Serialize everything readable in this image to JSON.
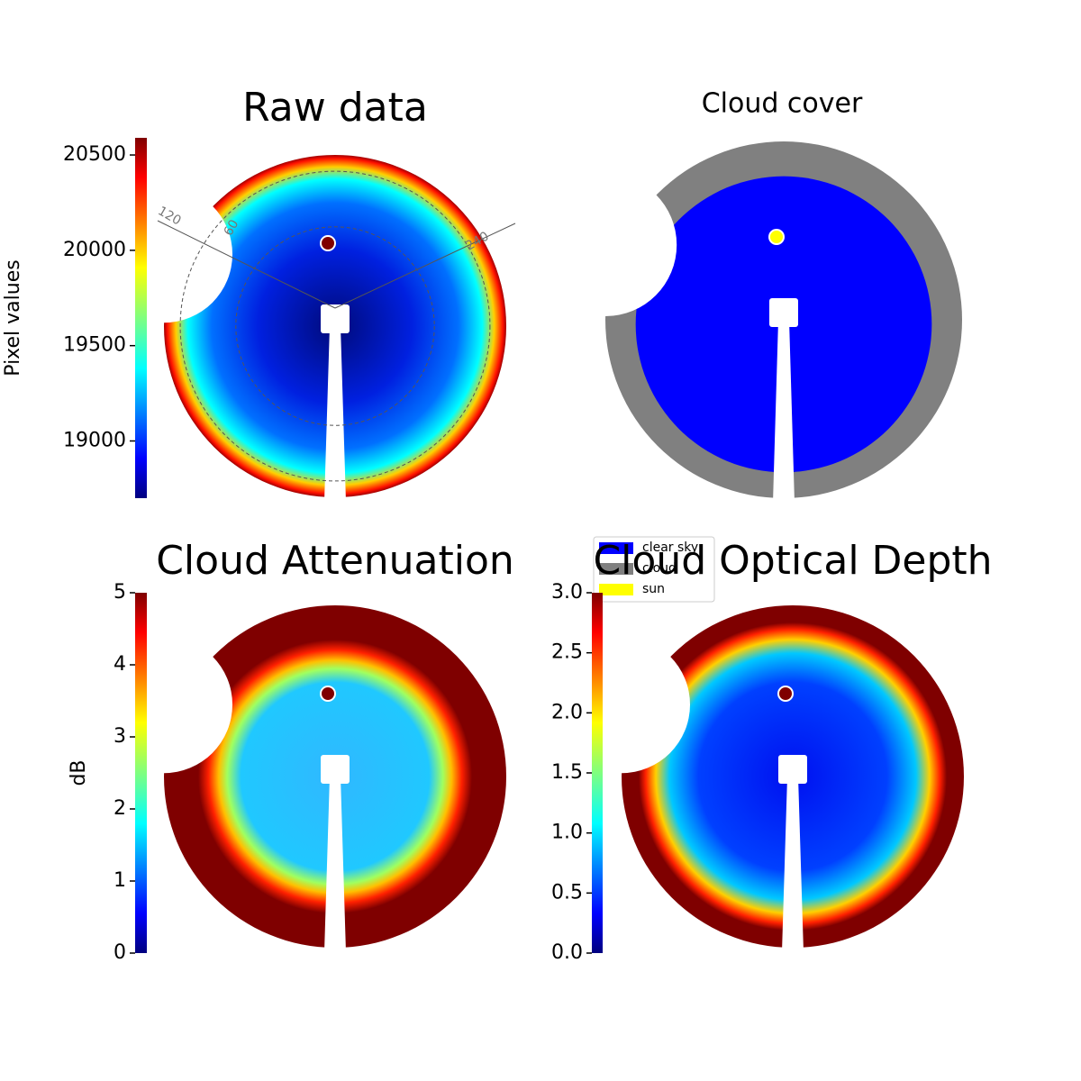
{
  "chart_data": [
    {
      "type": "image",
      "title": "Raw data",
      "colorbar_label": "Pixel values",
      "colormap": "jet",
      "ylim": [
        18700,
        20590
      ],
      "yticks": [
        19000,
        19500,
        20000,
        20500
      ],
      "annotations": [
        "120",
        "60",
        "240"
      ]
    },
    {
      "type": "categorical-image",
      "title": "Cloud cover",
      "series": [
        {
          "name": "clear sky",
          "color": "#0000ff"
        },
        {
          "name": "cloud",
          "color": "#808080"
        },
        {
          "name": "sun",
          "color": "#ffff00"
        }
      ]
    },
    {
      "type": "image",
      "title": "Cloud Attenuation",
      "colorbar_label": "dB",
      "colormap": "jet",
      "ylim": [
        0,
        5
      ],
      "yticks": [
        0,
        1,
        2,
        3,
        4,
        5
      ]
    },
    {
      "type": "image",
      "title": "Cloud Optical Depth",
      "colormap": "jet",
      "ylim": [
        0,
        3
      ],
      "yticks": [
        {
          "value": 0,
          "label": "0.0"
        },
        0.5,
        {
          "value": 1,
          "label": "1.0"
        },
        1.5,
        {
          "value": 2,
          "label": "2.0"
        },
        2.5,
        {
          "value": 3,
          "label": "3.0"
        }
      ]
    }
  ]
}
